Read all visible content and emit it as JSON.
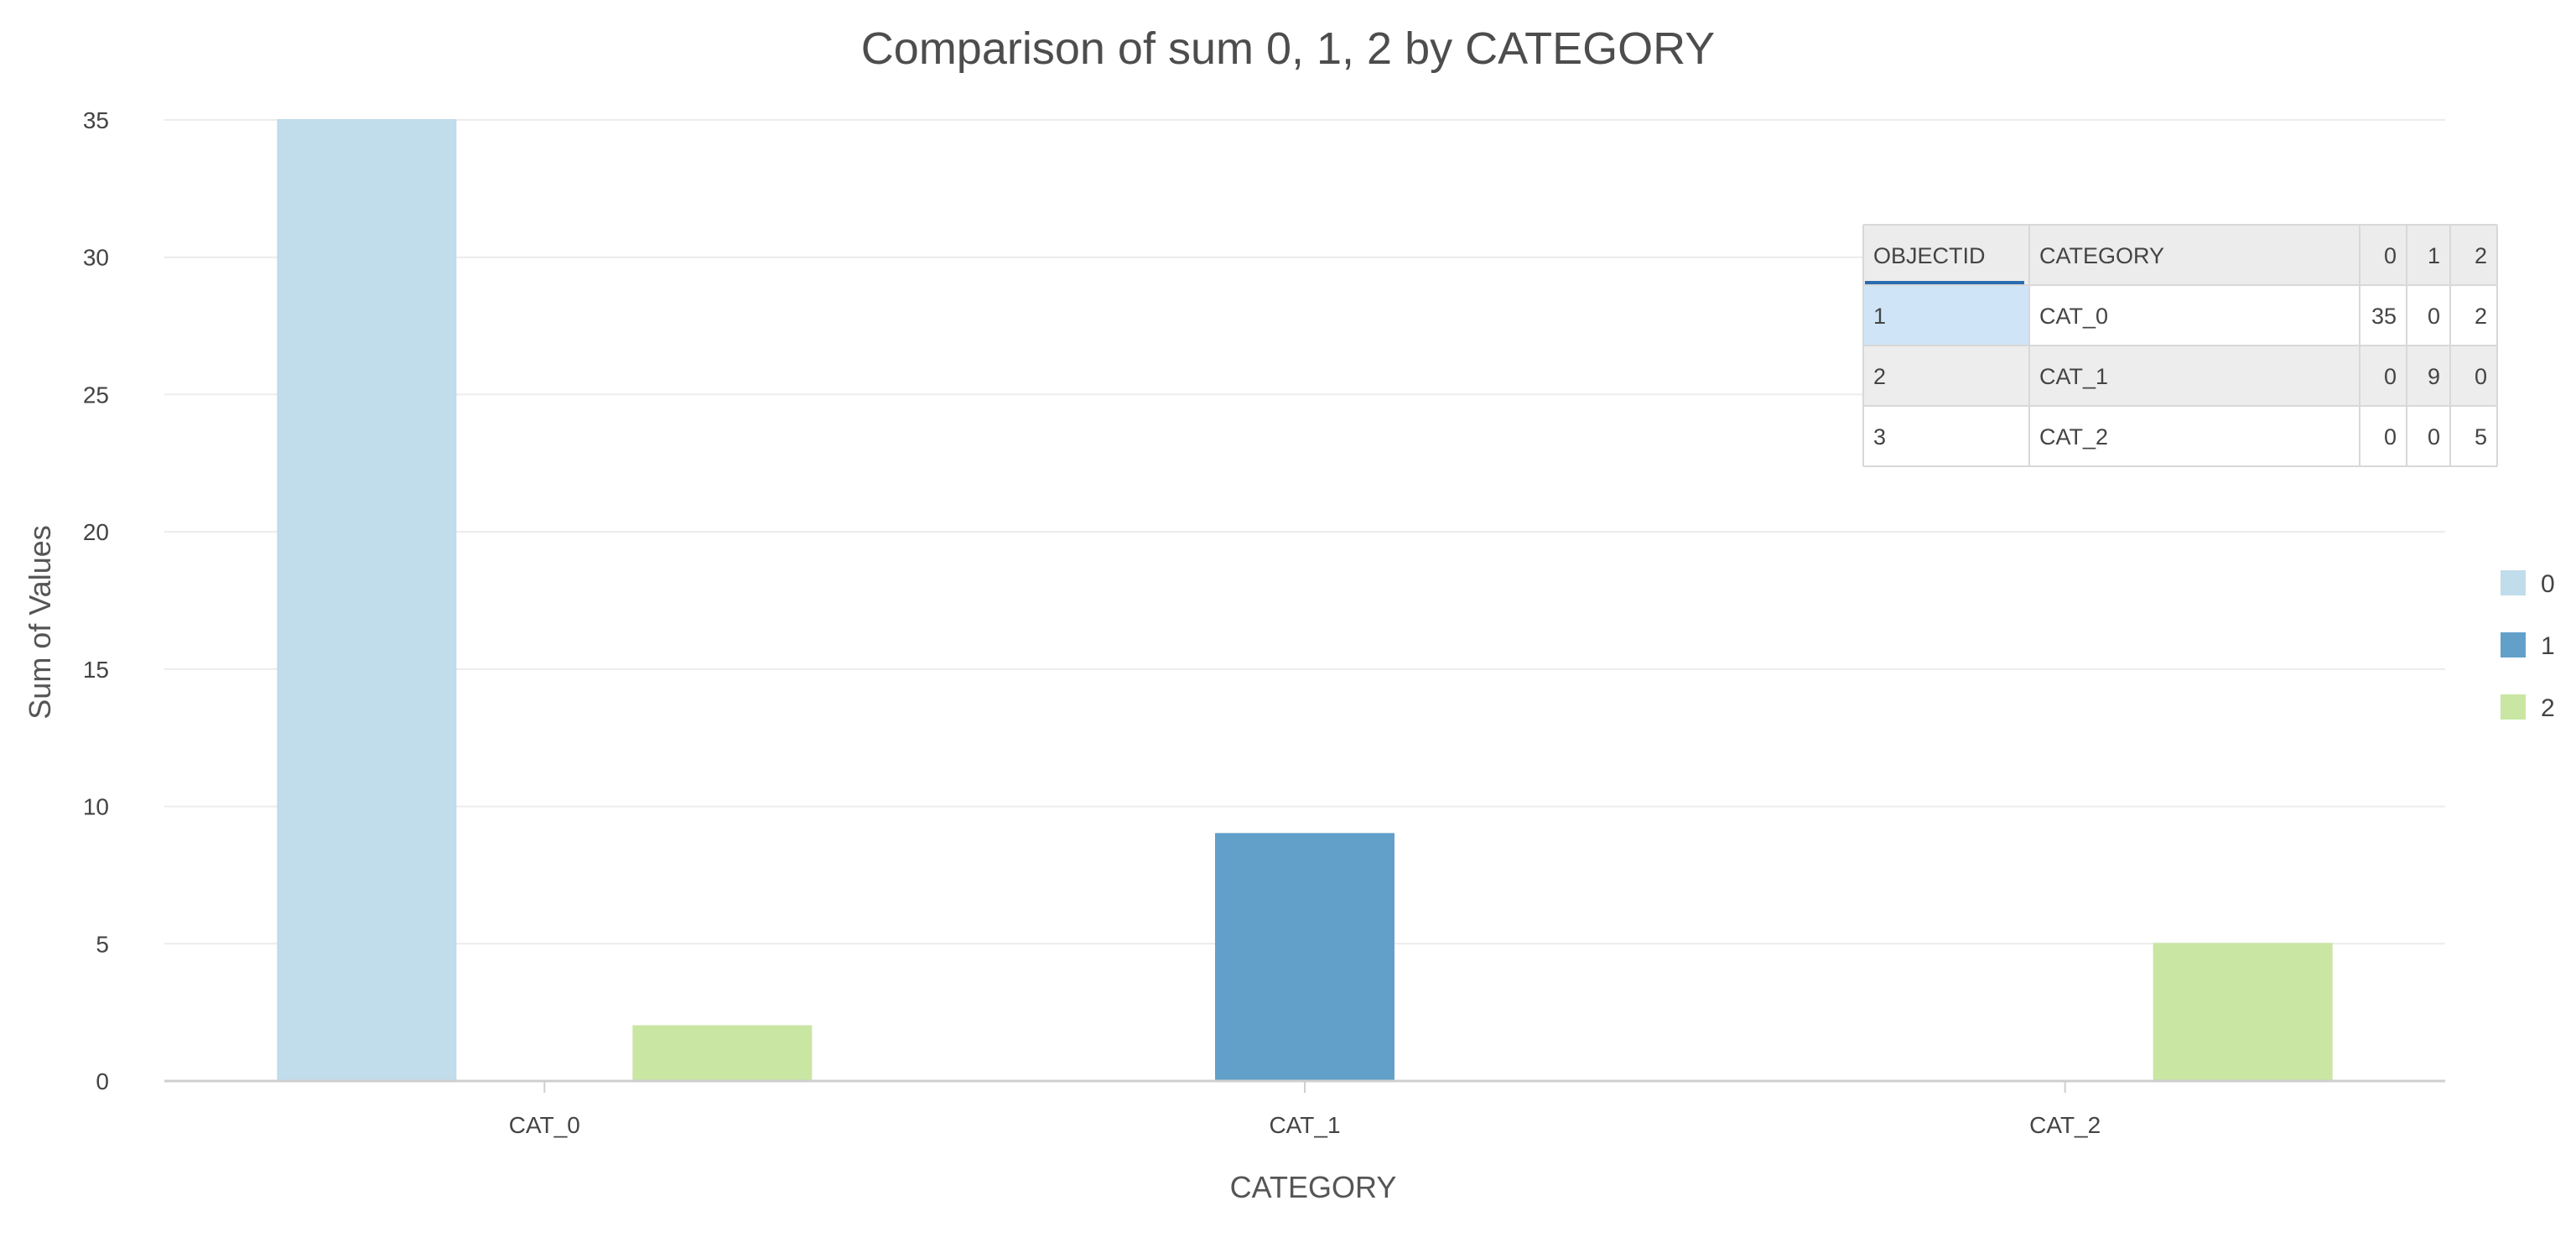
{
  "chart_data": {
    "type": "bar",
    "title": "Comparison of sum 0, 1, 2 by CATEGORY",
    "xlabel": "CATEGORY",
    "ylabel": "Sum of Values",
    "categories": [
      "CAT_0",
      "CAT_1",
      "CAT_2"
    ],
    "series": [
      {
        "name": "0",
        "values": [
          35,
          0,
          0
        ],
        "color": "#c1dcea"
      },
      {
        "name": "1",
        "values": [
          0,
          9,
          0
        ],
        "color": "#62a0ca"
      },
      {
        "name": "2",
        "values": [
          2,
          0,
          5
        ],
        "color": "#c9e6a3"
      }
    ],
    "ylim": [
      0,
      35
    ],
    "yticks": [
      0,
      5,
      10,
      15,
      20,
      25,
      30,
      35
    ],
    "grid": true,
    "legend": "right"
  },
  "table": {
    "columns": [
      "OBJECTID",
      "CATEGORY",
      "0",
      "1",
      "2"
    ],
    "rows": [
      [
        "1",
        "CAT_0",
        "35",
        "0",
        "2"
      ],
      [
        "2",
        "CAT_1",
        "0",
        "9",
        "0"
      ],
      [
        "3",
        "CAT_2",
        "0",
        "0",
        "5"
      ]
    ]
  }
}
